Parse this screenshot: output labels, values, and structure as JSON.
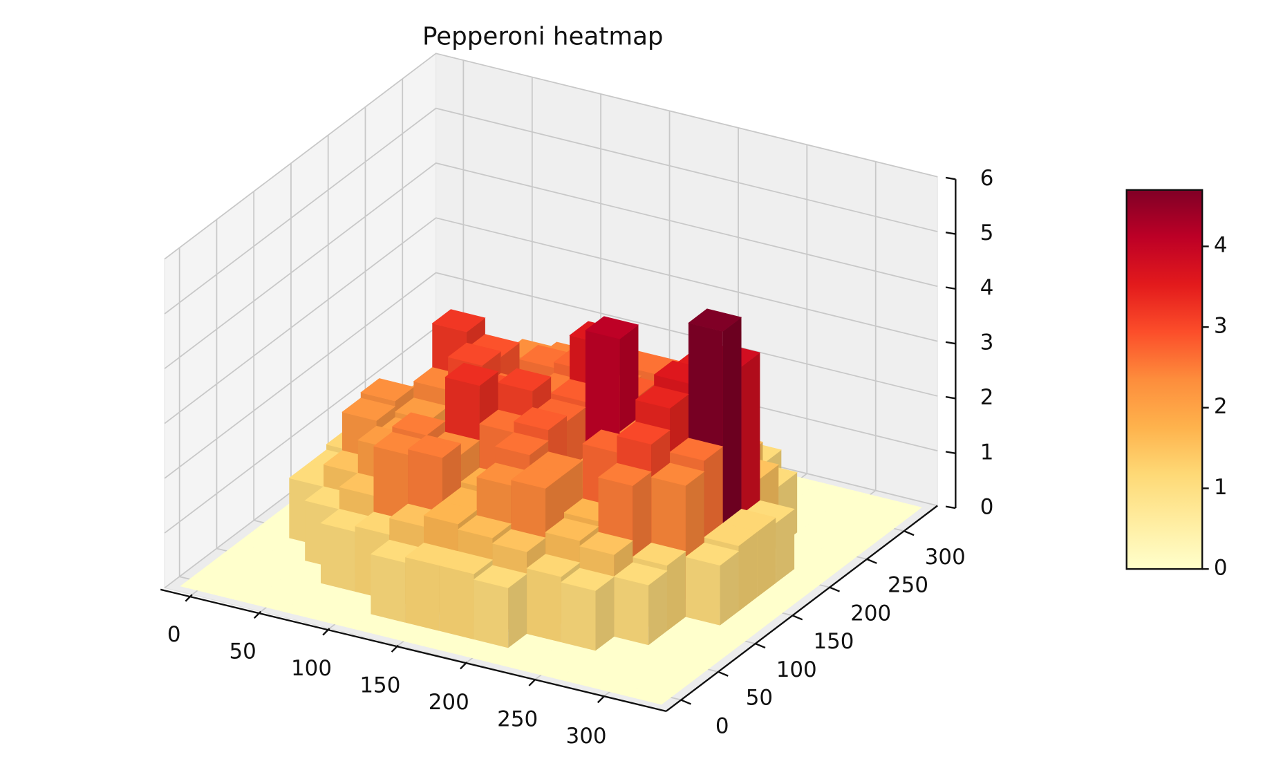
{
  "chart_data": {
    "type": "surface3d",
    "title": "Pepperoni heatmap",
    "x": [
      0,
      25,
      50,
      75,
      100,
      125,
      150,
      175,
      200,
      225,
      250,
      275,
      300,
      325
    ],
    "y": [
      0,
      25,
      50,
      75,
      100,
      125,
      150,
      175,
      200,
      225,
      250,
      275,
      300,
      325
    ],
    "z": [
      [
        0,
        0,
        0,
        0,
        0,
        0,
        0,
        0,
        0,
        0,
        0,
        0,
        0,
        0
      ],
      [
        0,
        0,
        0,
        0,
        0,
        1.1,
        1.2,
        1.2,
        1.1,
        0,
        0,
        0,
        0,
        0
      ],
      [
        0,
        0,
        0,
        1.1,
        1.2,
        1.5,
        1.7,
        1.6,
        1.5,
        1.2,
        1.1,
        0,
        0,
        0
      ],
      [
        0,
        0,
        1.1,
        1.5,
        2.4,
        2.5,
        1.7,
        2.3,
        2.4,
        1.6,
        1.5,
        1.1,
        0,
        0
      ],
      [
        0,
        1.1,
        1.5,
        2.1,
        2.5,
        2.3,
        1.8,
        2.6,
        2.4,
        1.7,
        2.5,
        1.2,
        0,
        0
      ],
      [
        0,
        1.1,
        2.2,
        2.0,
        1.7,
        3.3,
        2.6,
        2.8,
        1.9,
        2.7,
        3.0,
        2.4,
        1.1,
        0
      ],
      [
        0,
        1.2,
        2.3,
        2.1,
        1.8,
        2.9,
        3.1,
        2.7,
        1.8,
        2.3,
        3.4,
        2.6,
        1.2,
        0
      ],
      [
        0,
        1.2,
        1.6,
        2.4,
        3.0,
        2.6,
        1.9,
        2.8,
        4.1,
        2.4,
        3.6,
        4.7,
        1.2,
        0
      ],
      [
        0,
        1.1,
        1.7,
        3.2,
        2.9,
        1.8,
        2.5,
        3.6,
        2.8,
        2.2,
        3.5,
        3.8,
        1.1,
        0
      ],
      [
        0,
        0,
        1.5,
        2.2,
        1.9,
        2.6,
        2.7,
        2.5,
        1.8,
        2.6,
        2.4,
        1.5,
        0,
        0
      ],
      [
        0,
        0,
        1.1,
        1.6,
        2.3,
        2.4,
        1.7,
        2.6,
        2.6,
        1.6,
        1.5,
        1.1,
        0,
        0
      ],
      [
        0,
        0,
        0,
        1.1,
        1.5,
        1.6,
        1.7,
        1.6,
        1.5,
        1.4,
        1.1,
        0,
        0,
        0
      ],
      [
        0,
        0,
        0,
        0,
        0,
        1.1,
        1.2,
        1.2,
        1.1,
        0,
        0,
        0,
        0,
        0
      ],
      [
        0,
        0,
        0,
        0,
        0,
        0,
        0,
        0,
        0,
        0,
        0,
        0,
        0,
        0
      ]
    ],
    "xlim": [
      -20,
      345
    ],
    "ylim": [
      -20,
      345
    ],
    "zlim": [
      0,
      6
    ],
    "xticks": [
      0,
      50,
      100,
      150,
      200,
      250,
      300
    ],
    "yticks": [
      0,
      50,
      100,
      150,
      200,
      250,
      300
    ],
    "zticks": [
      0,
      1,
      2,
      3,
      4,
      5,
      6
    ],
    "grid": true,
    "colormap": "YlOrRd",
    "colorbar": {
      "lim": [
        0,
        4.7
      ],
      "ticks": [
        0,
        1,
        2,
        3,
        4
      ]
    }
  }
}
